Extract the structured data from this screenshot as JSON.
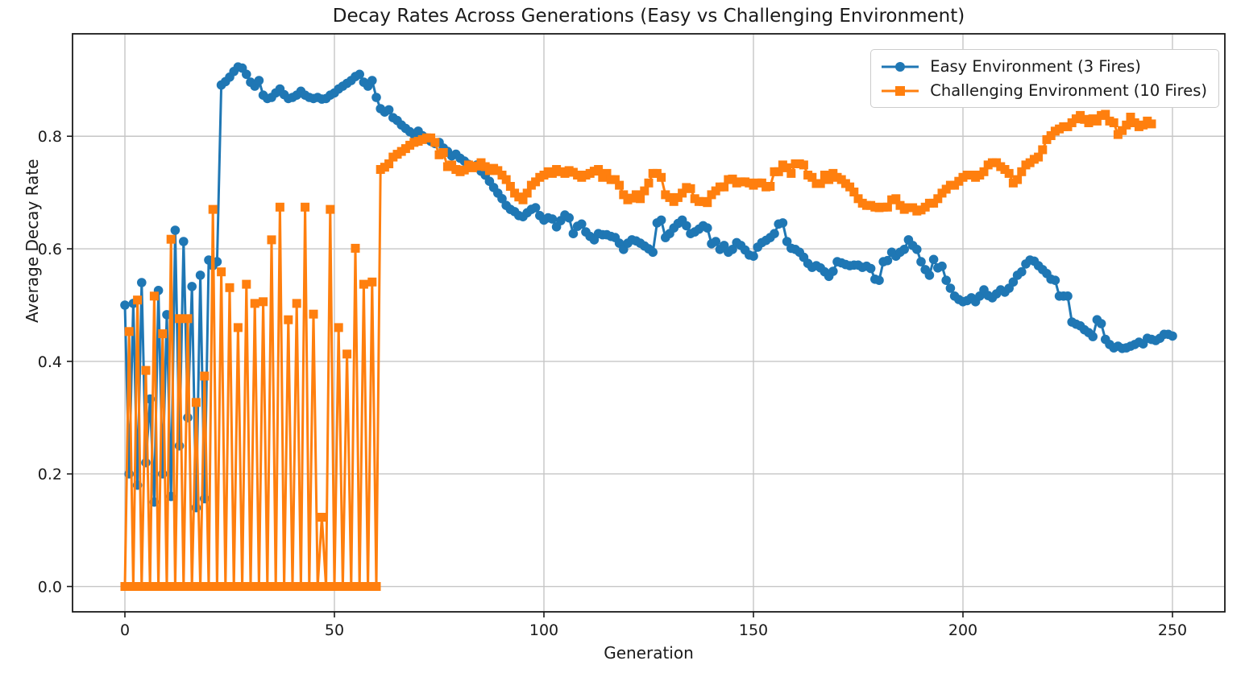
{
  "chart_data": {
    "type": "line",
    "title": "Decay Rates Across Generations (Easy vs Challenging Environment)",
    "xlabel": "Generation",
    "ylabel": "Average Decay Rate",
    "xlim": [
      -12.5,
      262.5
    ],
    "ylim": [
      -0.045,
      0.982
    ],
    "grid": true,
    "legend_position": "upper right",
    "x_ticks": [
      {
        "label": "0",
        "v": 0
      },
      {
        "label": "50",
        "v": 50
      },
      {
        "label": "100",
        "v": 100
      },
      {
        "label": "150",
        "v": 150
      },
      {
        "label": "200",
        "v": 200
      },
      {
        "label": "250",
        "v": 250
      }
    ],
    "y_ticks": [
      {
        "label": "0.0",
        "v": 0.0
      },
      {
        "label": "0.2",
        "v": 0.2
      },
      {
        "label": "0.4",
        "v": 0.4
      },
      {
        "label": "0.6",
        "v": 0.6
      },
      {
        "label": "0.8",
        "v": 0.8
      }
    ],
    "series": [
      {
        "name": "Easy Environment (3 Fires)",
        "color": "#1f77b4",
        "marker": "circle",
        "x_start": 0,
        "values": [
          0.5,
          0.2,
          0.503,
          0.18,
          0.54,
          0.22,
          0.333,
          0.15,
          0.526,
          0.2,
          0.483,
          0.16,
          0.633,
          0.25,
          0.613,
          0.3,
          0.533,
          0.14,
          0.553,
          0.156,
          0.58,
          0.57,
          0.577,
          0.891,
          0.897,
          0.905,
          0.915,
          0.923,
          0.921,
          0.91,
          0.896,
          0.889,
          0.899,
          0.873,
          0.867,
          0.869,
          0.877,
          0.884,
          0.874,
          0.867,
          0.869,
          0.873,
          0.88,
          0.873,
          0.869,
          0.867,
          0.869,
          0.866,
          0.867,
          0.873,
          0.877,
          0.884,
          0.889,
          0.894,
          0.899,
          0.906,
          0.91,
          0.896,
          0.889,
          0.899,
          0.869,
          0.849,
          0.843,
          0.847,
          0.833,
          0.828,
          0.82,
          0.814,
          0.808,
          0.803,
          0.809,
          0.801,
          0.797,
          0.791,
          0.787,
          0.789,
          0.779,
          0.773,
          0.765,
          0.768,
          0.761,
          0.756,
          0.75,
          0.746,
          0.749,
          0.738,
          0.731,
          0.72,
          0.709,
          0.699,
          0.689,
          0.677,
          0.67,
          0.666,
          0.659,
          0.657,
          0.664,
          0.67,
          0.673,
          0.659,
          0.651,
          0.655,
          0.653,
          0.639,
          0.65,
          0.66,
          0.655,
          0.627,
          0.64,
          0.644,
          0.63,
          0.622,
          0.616,
          0.627,
          0.625,
          0.625,
          0.622,
          0.62,
          0.61,
          0.599,
          0.61,
          0.616,
          0.614,
          0.61,
          0.605,
          0.6,
          0.594,
          0.646,
          0.651,
          0.62,
          0.627,
          0.637,
          0.645,
          0.651,
          0.641,
          0.627,
          0.63,
          0.635,
          0.641,
          0.637,
          0.609,
          0.613,
          0.599,
          0.606,
          0.594,
          0.599,
          0.611,
          0.606,
          0.598,
          0.589,
          0.587,
          0.603,
          0.611,
          0.615,
          0.62,
          0.627,
          0.644,
          0.646,
          0.613,
          0.601,
          0.599,
          0.594,
          0.585,
          0.574,
          0.567,
          0.57,
          0.566,
          0.559,
          0.551,
          0.56,
          0.577,
          0.575,
          0.572,
          0.57,
          0.571,
          0.571,
          0.567,
          0.569,
          0.565,
          0.546,
          0.544,
          0.577,
          0.579,
          0.594,
          0.587,
          0.594,
          0.599,
          0.616,
          0.606,
          0.599,
          0.577,
          0.563,
          0.553,
          0.581,
          0.566,
          0.569,
          0.544,
          0.53,
          0.516,
          0.51,
          0.506,
          0.508,
          0.513,
          0.506,
          0.516,
          0.527,
          0.517,
          0.513,
          0.52,
          0.527,
          0.523,
          0.53,
          0.541,
          0.553,
          0.559,
          0.573,
          0.58,
          0.578,
          0.57,
          0.563,
          0.556,
          0.546,
          0.544,
          0.516,
          0.516,
          0.516,
          0.47,
          0.466,
          0.463,
          0.456,
          0.451,
          0.444,
          0.474,
          0.467,
          0.439,
          0.43,
          0.424,
          0.427,
          0.423,
          0.424,
          0.427,
          0.43,
          0.434,
          0.431,
          0.441,
          0.439,
          0.437,
          0.441,
          0.448,
          0.448,
          0.445
        ]
      },
      {
        "name": "Challenging Environment (10 Fires)",
        "color": "#ff7f0e",
        "marker": "square",
        "x_start": 0,
        "values": [
          0,
          0.453,
          0,
          0.509,
          0,
          0.384,
          0,
          0.516,
          0,
          0.449,
          0,
          0.617,
          0,
          0.476,
          0,
          0.476,
          0,
          0.327,
          0,
          0.374,
          0,
          0.67,
          0,
          0.559,
          0,
          0.531,
          0,
          0.46,
          0,
          0.537,
          0,
          0.503,
          0,
          0.506,
          0,
          0.616,
          0,
          0.674,
          0,
          0.474,
          0,
          0.503,
          0,
          0.674,
          0,
          0.484,
          0,
          0.123,
          0,
          0.67,
          0,
          0.46,
          0,
          0.413,
          0,
          0.601,
          0,
          0.537,
          0,
          0.541,
          0,
          0.741,
          0.745,
          0.751,
          0.763,
          0.768,
          0.773,
          0.778,
          0.784,
          0.789,
          0.791,
          0.794,
          0.797,
          0.797,
          0.789,
          0.767,
          0.771,
          0.746,
          0.749,
          0.741,
          0.737,
          0.74,
          0.749,
          0.744,
          0.747,
          0.753,
          0.746,
          0.739,
          0.743,
          0.739,
          0.731,
          0.723,
          0.711,
          0.699,
          0.692,
          0.687,
          0.699,
          0.713,
          0.719,
          0.727,
          0.731,
          0.737,
          0.734,
          0.741,
          0.737,
          0.734,
          0.739,
          0.736,
          0.731,
          0.727,
          0.731,
          0.734,
          0.738,
          0.741,
          0.727,
          0.734,
          0.723,
          0.723,
          0.713,
          0.696,
          0.687,
          0.69,
          0.696,
          0.689,
          0.703,
          0.717,
          0.734,
          0.734,
          0.727,
          0.696,
          0.691,
          0.684,
          0.691,
          0.699,
          0.709,
          0.707,
          0.689,
          0.684,
          0.684,
          0.682,
          0.696,
          0.703,
          0.71,
          0.71,
          0.723,
          0.724,
          0.717,
          0.719,
          0.719,
          0.717,
          0.713,
          0.717,
          0.717,
          0.71,
          0.711,
          0.737,
          0.737,
          0.749,
          0.744,
          0.734,
          0.751,
          0.751,
          0.749,
          0.731,
          0.727,
          0.716,
          0.716,
          0.731,
          0.723,
          0.734,
          0.727,
          0.723,
          0.716,
          0.71,
          0.701,
          0.689,
          0.681,
          0.677,
          0.677,
          0.674,
          0.673,
          0.674,
          0.674,
          0.687,
          0.689,
          0.677,
          0.67,
          0.673,
          0.673,
          0.667,
          0.669,
          0.674,
          0.681,
          0.681,
          0.689,
          0.699,
          0.706,
          0.713,
          0.713,
          0.72,
          0.727,
          0.731,
          0.731,
          0.727,
          0.731,
          0.737,
          0.749,
          0.753,
          0.753,
          0.746,
          0.741,
          0.734,
          0.717,
          0.723,
          0.737,
          0.749,
          0.753,
          0.759,
          0.763,
          0.776,
          0.794,
          0.801,
          0.809,
          0.813,
          0.817,
          0.817,
          0.824,
          0.831,
          0.837,
          0.83,
          0.824,
          0.831,
          0.827,
          0.837,
          0.839,
          0.827,
          0.824,
          0.803,
          0.81,
          0.82,
          0.834,
          0.824,
          0.817,
          0.82,
          0.827,
          0.822
        ]
      }
    ]
  }
}
